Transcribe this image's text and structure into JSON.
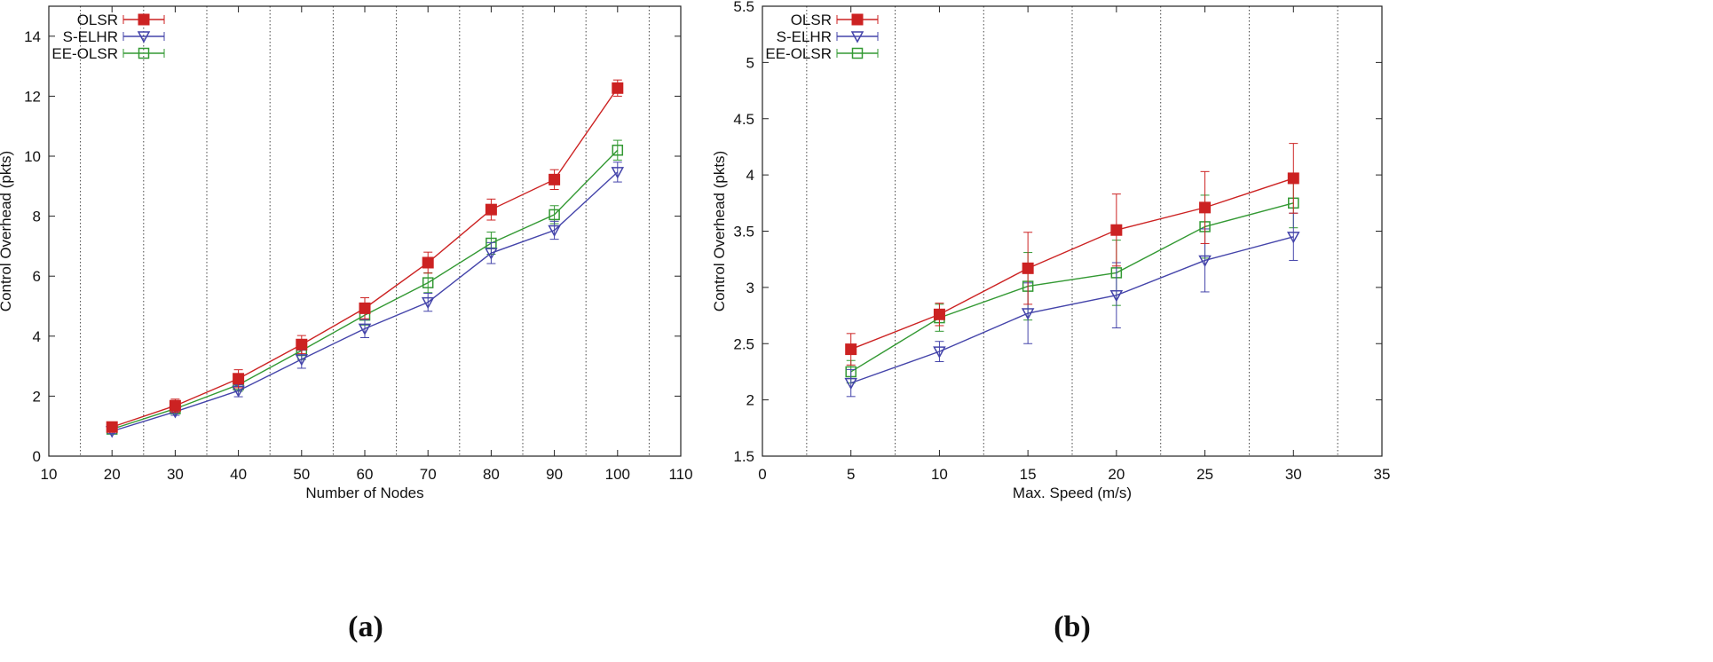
{
  "chart_data": [
    {
      "type": "line",
      "panel_label": "(a)",
      "xlabel": "Number of Nodes",
      "ylabel": "Control Overhead (pkts)",
      "xlim": [
        10,
        110
      ],
      "ylim": [
        0,
        15
      ],
      "xticks": [
        10,
        20,
        30,
        40,
        50,
        60,
        70,
        80,
        90,
        100,
        110
      ],
      "yticks": [
        0,
        2,
        4,
        6,
        8,
        10,
        12,
        14
      ],
      "vgrid": [
        15,
        25,
        35,
        45,
        55,
        65,
        75,
        85,
        95,
        105
      ],
      "legend_position": "top-left",
      "x": [
        20,
        30,
        40,
        50,
        60,
        70,
        80,
        90,
        100
      ],
      "series": [
        {
          "name": "OLSR",
          "color": "#cc2222",
          "marker": "filled-square",
          "values": [
            0.97,
            1.68,
            2.58,
            3.72,
            4.93,
            6.45,
            8.22,
            9.22,
            12.27
          ],
          "errors": [
            0.12,
            0.22,
            0.3,
            0.3,
            0.35,
            0.35,
            0.35,
            0.33,
            0.27
          ]
        },
        {
          "name": "S-ELHR",
          "color": "#4444aa",
          "marker": "open-triangle-down",
          "values": [
            0.83,
            1.48,
            2.18,
            3.23,
            4.25,
            5.13,
            6.77,
            7.53,
            9.47
          ],
          "errors": [
            0.08,
            0.12,
            0.2,
            0.3,
            0.3,
            0.3,
            0.35,
            0.3,
            0.33
          ]
        },
        {
          "name": "EE-OLSR",
          "color": "#339933",
          "marker": "open-square",
          "values": [
            0.9,
            1.58,
            2.38,
            3.52,
            4.7,
            5.78,
            7.1,
            8.05,
            10.2
          ],
          "errors": [
            0.1,
            0.15,
            0.22,
            0.3,
            0.33,
            0.33,
            0.37,
            0.3,
            0.33
          ]
        }
      ]
    },
    {
      "type": "line",
      "panel_label": "(b)",
      "xlabel": "Max. Speed (m/s)",
      "ylabel": "Control Overhead (pkts)",
      "xlim": [
        0,
        35
      ],
      "ylim": [
        1.5,
        5.5
      ],
      "xticks": [
        0,
        5,
        10,
        15,
        20,
        25,
        30,
        35
      ],
      "yticks": [
        1.5,
        2,
        2.5,
        3,
        3.5,
        4,
        4.5,
        5,
        5.5
      ],
      "vgrid": [
        2.5,
        7.5,
        12.5,
        17.5,
        22.5,
        27.5,
        32.5
      ],
      "legend_position": "top-left",
      "x": [
        5,
        10,
        15,
        20,
        25,
        30
      ],
      "series": [
        {
          "name": "OLSR",
          "color": "#cc2222",
          "marker": "filled-square",
          "values": [
            2.45,
            2.76,
            3.17,
            3.51,
            3.71,
            3.97
          ],
          "errors": [
            0.14,
            0.1,
            0.32,
            0.32,
            0.32,
            0.31
          ]
        },
        {
          "name": "S-ELHR",
          "color": "#4444aa",
          "marker": "open-triangle-down",
          "values": [
            2.15,
            2.43,
            2.77,
            2.93,
            3.24,
            3.45
          ],
          "errors": [
            0.12,
            0.09,
            0.27,
            0.29,
            0.28,
            0.21
          ]
        },
        {
          "name": "EE-OLSR",
          "color": "#339933",
          "marker": "open-square",
          "values": [
            2.25,
            2.73,
            3.01,
            3.13,
            3.54,
            3.75
          ],
          "errors": [
            0.1,
            0.12,
            0.3,
            0.29,
            0.28,
            0.22
          ]
        }
      ]
    }
  ]
}
